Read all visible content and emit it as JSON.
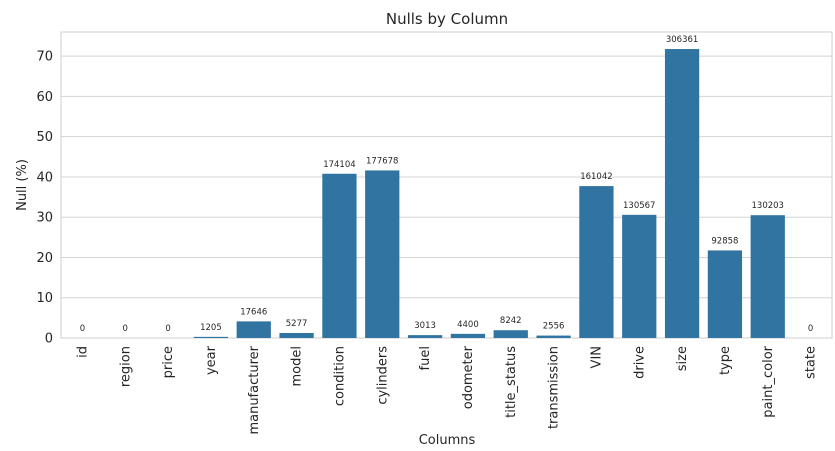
{
  "chart_data": {
    "type": "bar",
    "title": "Nulls by Column",
    "xlabel": "Columns",
    "ylabel": "Null (%)",
    "ylim": [
      0,
      76
    ],
    "yticks": [
      0,
      10,
      20,
      30,
      40,
      50,
      60,
      70
    ],
    "grid": "horizontal",
    "bar_color": "#3274a1",
    "categories": [
      "id",
      "region",
      "price",
      "year",
      "manufacturer",
      "model",
      "condition",
      "cylinders",
      "fuel",
      "odometer",
      "title_status",
      "transmission",
      "VIN",
      "drive",
      "size",
      "type",
      "paint_color",
      "state"
    ],
    "values": [
      0,
      0,
      0,
      0.28,
      4.13,
      1.24,
      40.79,
      41.62,
      0.71,
      1.03,
      1.93,
      0.6,
      37.73,
      30.59,
      71.77,
      21.75,
      30.5,
      0
    ],
    "data_labels": [
      "0",
      "0",
      "0",
      "1205",
      "17646",
      "5277",
      "174104",
      "177678",
      "3013",
      "4400",
      "8242",
      "2556",
      "161042",
      "130567",
      "306361",
      "92858",
      "130203",
      "0"
    ]
  }
}
